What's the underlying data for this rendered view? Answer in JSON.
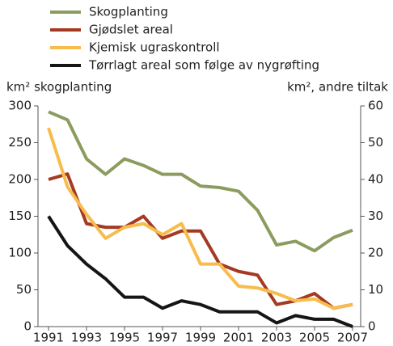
{
  "chart_data": {
    "type": "line",
    "y_label": "km² skogplanting",
    "y2_label": "km², andre tiltak",
    "x": [
      1991,
      1992,
      1993,
      1994,
      1995,
      1996,
      1997,
      1998,
      1999,
      2000,
      2001,
      2002,
      2003,
      2004,
      2005,
      2006,
      2007
    ],
    "xlim": [
      1991,
      2007
    ],
    "xticks": [
      1991,
      1993,
      1995,
      1997,
      1999,
      2001,
      2003,
      2005,
      2007
    ],
    "ylim": [
      0,
      300
    ],
    "yticks": [
      0,
      50,
      100,
      150,
      200,
      250,
      300
    ],
    "y2lim": [
      0,
      60
    ],
    "y2ticks": [
      0,
      10,
      20,
      30,
      40,
      50,
      60
    ],
    "series": [
      {
        "name": "Skogplanting",
        "color": "#8c9c5e",
        "values": [
          292,
          281,
          228,
          207,
          228,
          219,
          207,
          207,
          191,
          189,
          184,
          158,
          111,
          116,
          103,
          121,
          131
        ]
      },
      {
        "name": "Gjødslet areal",
        "color": "#a53a22",
        "axis": "y2",
        "values": [
          40,
          41.5,
          28,
          27,
          27,
          30,
          24,
          26,
          26,
          17,
          15,
          14,
          6,
          7,
          9,
          5,
          6
        ]
      },
      {
        "name": "Kjemisk ugraskontroll",
        "color": "#f7bc4c",
        "axis": "y2",
        "values": [
          54,
          38,
          30.5,
          24,
          27,
          28,
          25,
          28,
          17,
          17,
          11,
          10.5,
          9,
          7,
          7.5,
          5,
          6
        ]
      },
      {
        "name": "Tørrlagt areal som følge av nygrøfting",
        "color": "#151515",
        "axis": "y2",
        "values": [
          30,
          22,
          17,
          13,
          8,
          8,
          5,
          7,
          6,
          4,
          4,
          4,
          1,
          3,
          2,
          2,
          0
        ]
      }
    ]
  }
}
